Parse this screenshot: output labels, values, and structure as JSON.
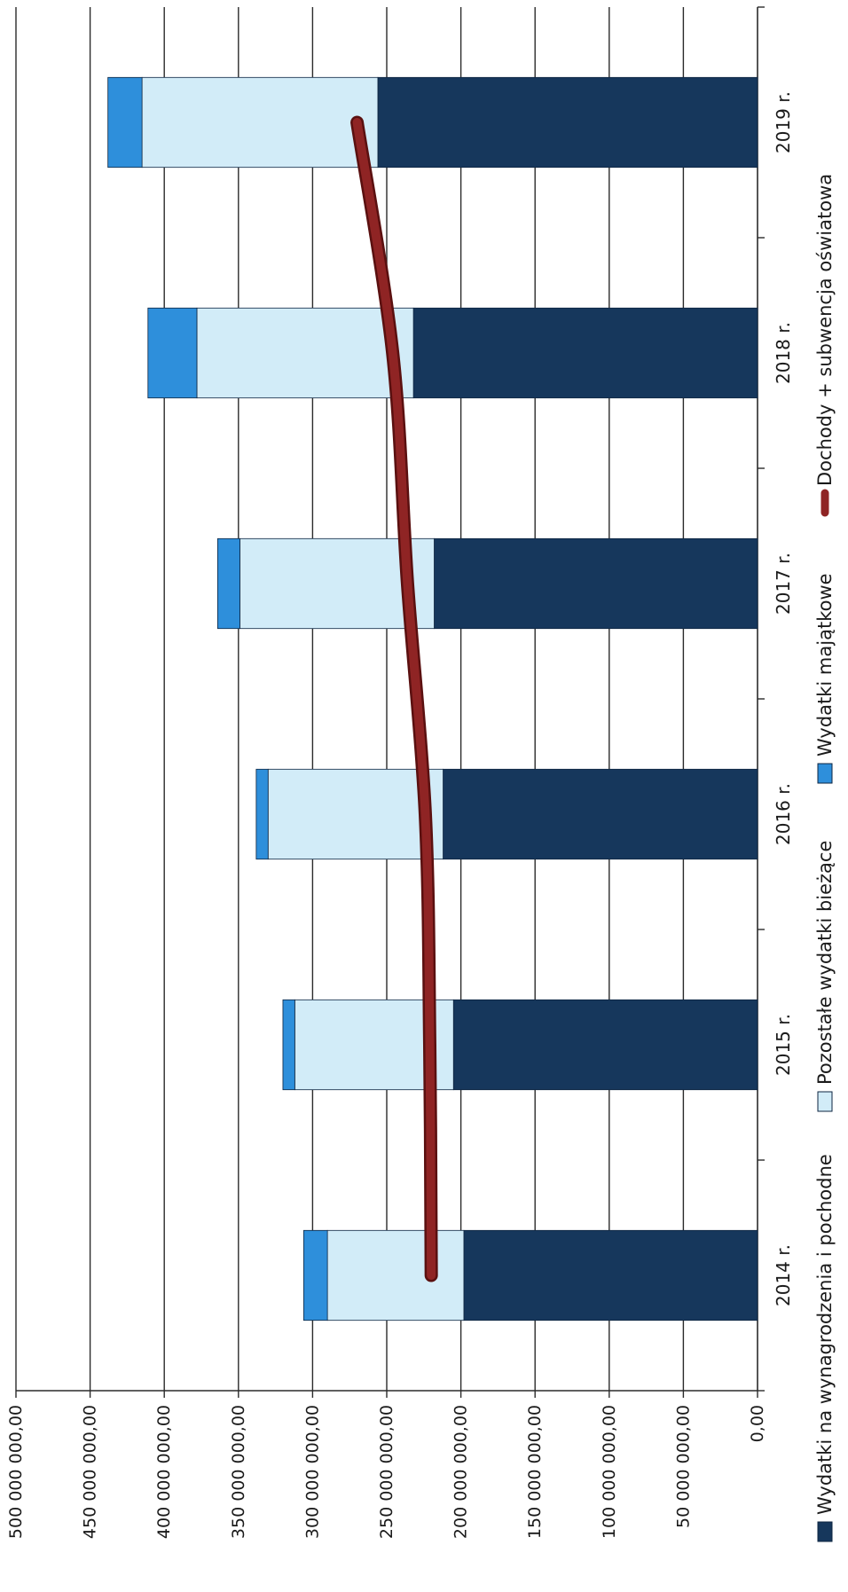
{
  "chart_data": {
    "type": "bar",
    "stacked": true,
    "orientation": "horizontal",
    "rotated_page": true,
    "categories": [
      "2014 r.",
      "2015 r.",
      "2016 r.",
      "2017 r.",
      "2018 r.",
      "2019 r."
    ],
    "series": [
      {
        "name": "Wydatki na wynagrodzenia i pochodne",
        "kind": "bar",
        "color": "#16375c",
        "values": [
          198000000,
          205000000,
          212000000,
          218000000,
          232000000,
          256000000
        ]
      },
      {
        "name": "Pozostałe wydatki bieżące",
        "kind": "bar",
        "color": "#d2ecf8",
        "values": [
          92000000,
          107000000,
          118000000,
          131000000,
          146000000,
          159000000
        ]
      },
      {
        "name": "Wydatki majątkowe",
        "kind": "bar",
        "color": "#2e8fdb",
        "values": [
          16000000,
          8000000,
          8000000,
          15000000,
          33000000,
          23000000
        ]
      },
      {
        "name": "Dochody + subwencja oświatowa",
        "kind": "line",
        "color": "#8f2424",
        "values": [
          220000000,
          221000000,
          224000000,
          236000000,
          246000000,
          270000000
        ]
      }
    ],
    "value_axis": {
      "min": 0,
      "max": 500000000,
      "step": 50000000,
      "tick_labels": [
        "0,00",
        "50 000 000,00",
        "100 000 000,00",
        "150 000 000,00",
        "200 000 000,00",
        "250 000 000,00",
        "300 000 000,00",
        "350 000 000,00",
        "400 000 000,00",
        "450 000 000,00",
        "500 000 000,00"
      ]
    },
    "grid": true,
    "legend_position": "bottom"
  }
}
